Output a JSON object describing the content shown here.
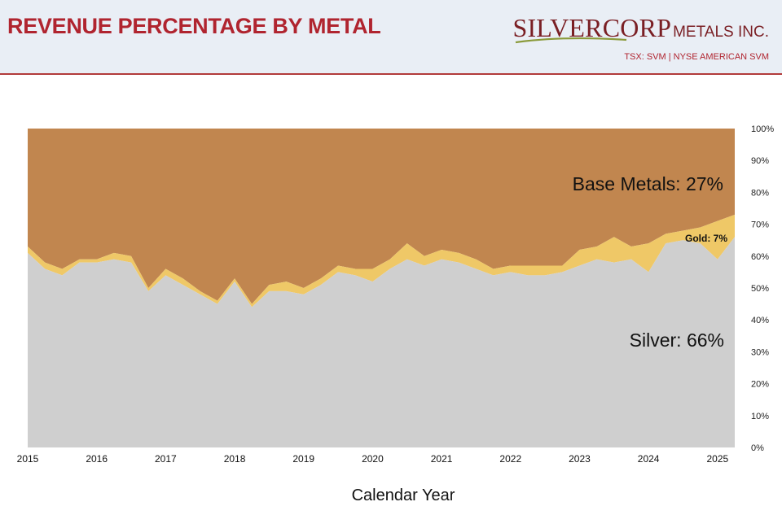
{
  "header": {
    "title": "REVENUE PERCENTAGE BY METAL",
    "logo_big": "SILVERCORP",
    "logo_small": "METALS INC.",
    "ticker": "TSX: SVM  |  NYSE AMERICAN SVM"
  },
  "colors": {
    "silver": "#cfcfcf",
    "gold": "#efc867",
    "base": "#c1864f",
    "title": "#b0242f"
  },
  "chart_data": {
    "type": "area",
    "title": "REVENUE PERCENTAGE BY METAL",
    "xlabel": "Calendar Year",
    "ylabel": "",
    "xlim": [
      2015,
      2025.25
    ],
    "ylim": [
      0,
      100
    ],
    "x_ticks": [
      "2015",
      "2016",
      "2017",
      "2018",
      "2019",
      "2020",
      "2021",
      "2022",
      "2023",
      "2024",
      "2025"
    ],
    "y_ticks": [
      "0%",
      "10%",
      "20%",
      "30%",
      "40%",
      "50%",
      "60%",
      "70%",
      "80%",
      "90%",
      "100%"
    ],
    "stacked": true,
    "x": [
      2015,
      2015.25,
      2015.5,
      2015.75,
      2016,
      2016.25,
      2016.5,
      2016.75,
      2017,
      2017.25,
      2017.5,
      2017.75,
      2018,
      2018.25,
      2018.5,
      2018.75,
      2019,
      2019.25,
      2019.5,
      2019.75,
      2020,
      2020.25,
      2020.5,
      2020.75,
      2021,
      2021.25,
      2021.5,
      2021.75,
      2022,
      2022.25,
      2022.5,
      2022.75,
      2023,
      2023.25,
      2023.5,
      2023.75,
      2024,
      2024.25,
      2024.5,
      2024.75,
      2025,
      2025.25
    ],
    "series": [
      {
        "name": "Silver",
        "values": [
          61,
          56,
          54,
          58,
          58,
          59,
          58,
          49,
          54,
          51,
          48,
          45,
          52,
          44,
          49,
          49,
          48,
          51,
          55,
          54,
          52,
          56,
          59,
          57,
          59,
          58,
          56,
          54,
          55,
          54,
          54,
          55,
          57,
          59,
          58,
          59,
          55,
          64,
          65,
          64,
          59,
          66
        ]
      },
      {
        "name": "Gold",
        "values": [
          2,
          2,
          2,
          1,
          1,
          2,
          2,
          1,
          2,
          2,
          1,
          1,
          1,
          1,
          2,
          3,
          2,
          2,
          2,
          2,
          4,
          3,
          5,
          3,
          3,
          3,
          3,
          2,
          2,
          3,
          3,
          2,
          5,
          4,
          8,
          4,
          9,
          3,
          3,
          5,
          12,
          7
        ]
      },
      {
        "name": "Base Metals",
        "values": [
          37,
          42,
          44,
          41,
          41,
          39,
          40,
          50,
          44,
          47,
          51,
          54,
          47,
          55,
          49,
          48,
          50,
          47,
          43,
          44,
          44,
          41,
          36,
          40,
          38,
          39,
          41,
          44,
          43,
          43,
          43,
          43,
          38,
          37,
          34,
          37,
          36,
          33,
          32,
          31,
          29,
          27
        ]
      }
    ],
    "annotations": [
      {
        "text": "Base Metals: 27%",
        "series": "Base Metals"
      },
      {
        "text": "Gold: 7%",
        "series": "Gold"
      },
      {
        "text": "Silver: 66%",
        "series": "Silver"
      }
    ]
  }
}
